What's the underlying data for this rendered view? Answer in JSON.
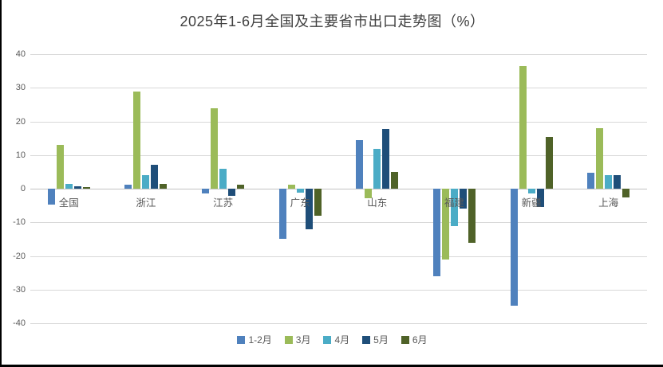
{
  "chart_data": {
    "type": "bar",
    "title": "2025年1-6月全国及主要省市出口走势图（%）",
    "categories": [
      "全国",
      "浙江",
      "江苏",
      "广东",
      "山东",
      "福建",
      "新疆",
      "上海"
    ],
    "series": [
      {
        "name": "1-2月",
        "color": "#4F81BD",
        "values": [
          -4.7,
          1.1,
          -1.5,
          -14.8,
          14.5,
          -26.0,
          -34.8,
          4.7
        ]
      },
      {
        "name": "3月",
        "color": "#9BBB59",
        "values": [
          13.0,
          29.0,
          24.0,
          1.2,
          -2.8,
          -21.0,
          36.5,
          18.0
        ]
      },
      {
        "name": "4月",
        "color": "#4BACC6",
        "values": [
          1.5,
          4.0,
          6.0,
          -1.2,
          11.8,
          -11.0,
          -1.5,
          4.0
        ]
      },
      {
        "name": "5月",
        "color": "#1F4E79",
        "values": [
          0.7,
          7.2,
          -2.2,
          -12.0,
          17.8,
          -6.0,
          -5.5,
          4.0
        ]
      },
      {
        "name": "6月",
        "color": "#4F6228",
        "values": [
          0.4,
          1.5,
          1.2,
          -8.0,
          5.0,
          -16.0,
          15.5,
          -2.5
        ]
      }
    ],
    "ylim": [
      -40,
      40
    ],
    "yticks": [
      40,
      30,
      20,
      10,
      0,
      -10,
      -20,
      -30,
      -40
    ],
    "xlabel": "",
    "ylabel": "",
    "grid": true,
    "legend_position": "bottom",
    "text_color": "#595959",
    "gridline_color": "#d9d9d9"
  }
}
